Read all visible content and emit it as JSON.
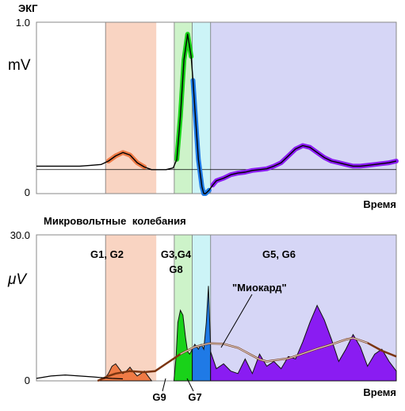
{
  "chart_data": [
    {
      "type": "line",
      "title": "ЭКГ",
      "ylabel": "mV",
      "xlabel": "Время",
      "y_ticks": [
        "1.0",
        "0"
      ],
      "ylim": [
        0,
        1.0
      ],
      "xlim": [
        0,
        100
      ],
      "grid": false,
      "bands": [
        {
          "x_start": 19.2,
          "x_end": 33.3,
          "color": "#f9d4c2",
          "text": ""
        },
        {
          "x_start": 38.3,
          "x_end": 43.3,
          "color": "#cdf3c9",
          "text": ""
        },
        {
          "x_start": 43.3,
          "x_end": 48.4,
          "color": "#ccf4f7",
          "text": ""
        },
        {
          "x_start": 48.4,
          "x_end": 100,
          "color": "#d6d6f6",
          "text": ""
        }
      ],
      "baseline": 0.14,
      "series": [
        {
          "color": "#000000",
          "x": [
            0,
            6,
            12,
            15,
            18,
            20,
            22,
            24,
            26,
            28,
            30,
            32,
            34,
            36,
            38,
            39,
            40,
            41,
            42,
            43,
            43.5,
            44,
            45,
            46,
            46.5,
            47,
            48,
            49,
            50,
            52,
            54,
            56,
            58,
            60,
            62,
            64,
            66,
            68,
            70,
            72,
            74,
            76,
            78,
            80,
            82,
            84,
            86,
            88,
            90,
            92,
            94,
            96,
            98,
            100
          ],
          "y": [
            0.16,
            0.16,
            0.16,
            0.165,
            0.17,
            0.19,
            0.22,
            0.24,
            0.225,
            0.18,
            0.155,
            0.14,
            0.14,
            0.14,
            0.15,
            0.2,
            0.45,
            0.78,
            0.93,
            0.8,
            0.66,
            0.5,
            0.2,
            0.04,
            0.0,
            0.0,
            0.02,
            0.05,
            0.075,
            0.09,
            0.11,
            0.12,
            0.125,
            0.135,
            0.14,
            0.145,
            0.16,
            0.18,
            0.22,
            0.26,
            0.28,
            0.27,
            0.24,
            0.21,
            0.19,
            0.18,
            0.17,
            0.16,
            0.16,
            0.165,
            0.17,
            0.175,
            0.18,
            0.19
          ]
        }
      ]
    },
    {
      "type": "area",
      "title": "Микровольтные колебания",
      "ylabel": "μV",
      "xlabel": "Время",
      "y_ticks": [
        "30.0",
        "0"
      ],
      "ylim": [
        0,
        30
      ],
      "xlim": [
        0,
        100
      ],
      "grid": false,
      "bands": [
        {
          "x_start": 19.2,
          "x_end": 33.3,
          "color": "#f9d4c2",
          "text": "G1, G2"
        },
        {
          "x_start": 38.3,
          "x_end": 43.3,
          "color": "#cdf3c9",
          "text": "G3,G4"
        },
        {
          "x_start": 43.3,
          "x_end": 48.4,
          "color": "#ccf4f7",
          "text": ""
        },
        {
          "x_start": 48.4,
          "x_end": 100,
          "color": "#d6d6f6",
          "text": "G5, G6"
        }
      ],
      "band_sublabel": "G8",
      "annotations": [
        "\"Миокард\"",
        "G9",
        "G7"
      ],
      "series": [
        {
          "name": "G1, G2",
          "color": "#ef7a45",
          "x": [
            17,
            19,
            20,
            21,
            22,
            23,
            24,
            25,
            26,
            27,
            28,
            29,
            30,
            31,
            32
          ],
          "y": [
            0,
            0.5,
            1.5,
            3.0,
            3.5,
            2.5,
            1.5,
            2.0,
            2.8,
            1.8,
            1.0,
            1.5,
            2.0,
            1.0,
            0
          ]
        },
        {
          "name": "G3,G4",
          "color": "#19d219",
          "x": [
            38.2,
            38.8,
            39.3,
            40,
            40.7,
            41.4,
            42,
            42.6,
            43.3
          ],
          "y": [
            0,
            5,
            12,
            14.5,
            13.5,
            9,
            6,
            5.5,
            6.5
          ]
        },
        {
          "name": "G8",
          "color": "#1f7ae6",
          "x": [
            43.3,
            44,
            45,
            45.8,
            46.5,
            47.2,
            47.8,
            48.4
          ],
          "y": [
            6.5,
            7.5,
            6.5,
            7.5,
            6.5,
            12,
            19.5,
            7
          ]
        },
        {
          "name": "G5, G6",
          "color": "#8a1cf2",
          "x": [
            48.4,
            50,
            52,
            54,
            56,
            58,
            60,
            62,
            64,
            66,
            68,
            70,
            72,
            74,
            76,
            78,
            80,
            82,
            84,
            86,
            88,
            90,
            92,
            94,
            96,
            98,
            100
          ],
          "y": [
            6,
            2.5,
            3.5,
            2.0,
            1.5,
            4.5,
            1.5,
            5.5,
            3.0,
            4.0,
            2.5,
            5.0,
            4.5,
            8.0,
            12.0,
            15.5,
            12.5,
            8.5,
            4.0,
            6.5,
            9.5,
            7.0,
            3.0,
            5.5,
            6.5,
            4.0,
            2.0
          ]
        },
        {
          "name": "\"Миокард\"",
          "color": "#7b3510",
          "x": [
            17,
            20,
            22,
            26,
            30,
            33,
            36,
            40,
            44,
            48,
            52,
            56,
            58,
            60,
            62,
            64,
            66,
            70,
            74,
            78,
            82,
            84,
            86,
            88,
            92,
            96,
            100
          ],
          "y": [
            0,
            1.0,
            1.5,
            2.0,
            1.8,
            2.0,
            3.5,
            5.5,
            7.0,
            7.7,
            7.6,
            6.8,
            6.0,
            5.2,
            4.4,
            4.0,
            4.2,
            4.6,
            5.6,
            6.6,
            7.5,
            8.0,
            8.5,
            8.8,
            7.8,
            6.2,
            5.0
          ]
        },
        {
          "color": "#000000",
          "x": [
            0,
            4,
            8,
            12,
            16,
            19,
            21,
            24
          ],
          "y": [
            0.5,
            1.0,
            1.2,
            1.0,
            0.8,
            0.6,
            0.5,
            0.4
          ]
        }
      ]
    }
  ]
}
